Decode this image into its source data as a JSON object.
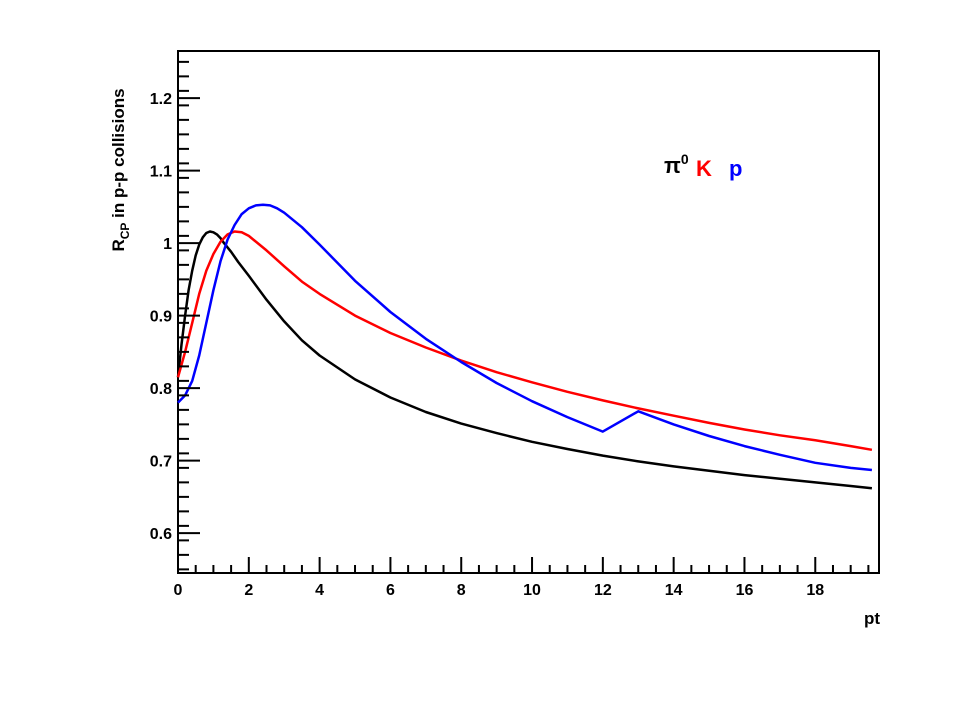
{
  "chart_data": {
    "type": "line",
    "title": "",
    "xlabel": "pt",
    "ylabel_main": "R",
    "ylabel_sub": "CP",
    "ylabel_rest": " in p-p collisions",
    "xlim": [
      0,
      19.8
    ],
    "ylim": [
      0.545,
      1.265
    ],
    "x_ticks": [
      0,
      2,
      4,
      6,
      8,
      10,
      12,
      14,
      16,
      18
    ],
    "x_tick_labels": [
      "0",
      "2",
      "4",
      "6",
      "8",
      "10",
      "12",
      "14",
      "16",
      "18"
    ],
    "y_ticks": [
      0.6,
      0.7,
      0.8,
      0.9,
      1.0,
      1.1,
      1.2
    ],
    "y_tick_labels": [
      "0.6",
      "0.7",
      "0.8",
      "0.9",
      "1",
      "1.1",
      "1.2"
    ],
    "grid": false,
    "legend_placement": "top-right",
    "legend": [
      {
        "base": "π",
        "sup": "0",
        "color": "#000000"
      },
      {
        "base": "K",
        "sup": "",
        "color": "#ff0000"
      },
      {
        "base": "p",
        "sup": "",
        "color": "#0000ff"
      }
    ],
    "series": [
      {
        "color": "#000000",
        "x": [
          0,
          0.1,
          0.2,
          0.3,
          0.4,
          0.5,
          0.6,
          0.7,
          0.8,
          0.9,
          1.0,
          1.1,
          1.2,
          1.3,
          1.5,
          1.7,
          2.0,
          2.5,
          3.0,
          3.5,
          4.0,
          5.0,
          6.0,
          7.0,
          8.0,
          9.0,
          10.0,
          11.0,
          12.0,
          13.0,
          14.0,
          15.0,
          16.0,
          17.0,
          18.0,
          19.0,
          19.6
        ],
        "y": [
          0.815,
          0.86,
          0.9,
          0.935,
          0.962,
          0.983,
          0.998,
          1.008,
          1.014,
          1.016,
          1.015,
          1.012,
          1.007,
          1.0,
          0.988,
          0.974,
          0.955,
          0.922,
          0.892,
          0.866,
          0.845,
          0.812,
          0.787,
          0.767,
          0.751,
          0.738,
          0.726,
          0.716,
          0.707,
          0.699,
          0.692,
          0.686,
          0.68,
          0.675,
          0.67,
          0.665,
          0.662
        ]
      },
      {
        "color": "#ff0000",
        "x": [
          0,
          0.2,
          0.4,
          0.6,
          0.8,
          1.0,
          1.2,
          1.4,
          1.6,
          1.8,
          2.0,
          2.5,
          3.0,
          3.5,
          4.0,
          5.0,
          6.0,
          7.0,
          8.0,
          9.0,
          10.0,
          11.0,
          12.0,
          13.0,
          14.0,
          15.0,
          16.0,
          17.0,
          18.0,
          19.0,
          19.6
        ],
        "y": [
          0.815,
          0.85,
          0.89,
          0.93,
          0.962,
          0.985,
          1.002,
          1.012,
          1.016,
          1.015,
          1.01,
          0.99,
          0.968,
          0.947,
          0.93,
          0.9,
          0.876,
          0.856,
          0.838,
          0.822,
          0.808,
          0.795,
          0.783,
          0.772,
          0.762,
          0.752,
          0.743,
          0.735,
          0.728,
          0.72,
          0.715
        ]
      },
      {
        "color": "#0000ff",
        "x": [
          0,
          0.2,
          0.4,
          0.6,
          0.8,
          1.0,
          1.2,
          1.4,
          1.6,
          1.8,
          2.0,
          2.2,
          2.4,
          2.6,
          2.8,
          3.0,
          3.5,
          4.0,
          5.0,
          6.0,
          7.0,
          8.0,
          9.0,
          10.0,
          11.0,
          12.0,
          13.0,
          14.0,
          15.0,
          16.0,
          17.0,
          18.0,
          19.0,
          19.6
        ],
        "y": [
          0.78,
          0.79,
          0.81,
          0.845,
          0.89,
          0.935,
          0.975,
          1.005,
          1.025,
          1.04,
          1.048,
          1.052,
          1.053,
          1.052,
          1.048,
          1.042,
          1.022,
          0.998,
          0.948,
          0.905,
          0.868,
          0.836,
          0.807,
          0.782,
          0.76,
          0.74,
          0.768,
          0.75,
          0.734,
          0.72,
          0.708,
          0.697,
          0.69,
          0.687
        ]
      }
    ]
  }
}
